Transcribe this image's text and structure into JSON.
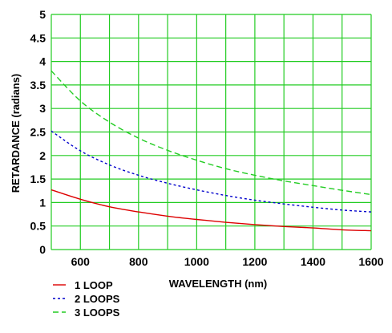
{
  "chart_data": {
    "type": "line",
    "title": "",
    "xlabel": "WAVELENGTH (nm)",
    "ylabel": "RETARDANCE (radians)",
    "xlim": [
      500,
      1600
    ],
    "ylim": [
      0,
      5
    ],
    "xticks": [
      600,
      800,
      1000,
      1200,
      1400,
      1600
    ],
    "yticks": [
      0,
      0.5,
      1,
      1.5,
      2,
      2.5,
      3,
      3.5,
      4,
      4.5,
      5
    ],
    "ytick_labels": [
      "0",
      "0.5",
      "1",
      "1.5",
      "2",
      "2.5",
      "3",
      "3.5",
      "4",
      "4.5",
      "5"
    ],
    "grid": true,
    "grid_color": "#22cc22",
    "legend_position": "bottom-left, below plot",
    "series": [
      {
        "name": "1 LOOP",
        "color": "#dd0000",
        "style": "solid",
        "x": [
          500,
          600,
          700,
          800,
          900,
          1000,
          1100,
          1200,
          1300,
          1400,
          1500,
          1600
        ],
        "y": [
          1.27,
          1.07,
          0.91,
          0.8,
          0.71,
          0.64,
          0.58,
          0.53,
          0.49,
          0.46,
          0.42,
          0.4
        ]
      },
      {
        "name": "2 LOOPS",
        "color": "#0000cc",
        "style": "dotted",
        "x": [
          500,
          600,
          700,
          800,
          900,
          1000,
          1100,
          1200,
          1300,
          1400,
          1500,
          1600
        ],
        "y": [
          2.52,
          2.1,
          1.8,
          1.58,
          1.41,
          1.27,
          1.15,
          1.05,
          0.97,
          0.9,
          0.84,
          0.8
        ]
      },
      {
        "name": "3 LOOPS",
        "color": "#22cc22",
        "style": "dashed",
        "x": [
          500,
          600,
          700,
          800,
          900,
          1000,
          1100,
          1200,
          1300,
          1400,
          1500,
          1600
        ],
        "y": [
          3.8,
          3.16,
          2.71,
          2.37,
          2.11,
          1.9,
          1.72,
          1.58,
          1.46,
          1.36,
          1.26,
          1.17
        ]
      }
    ]
  }
}
